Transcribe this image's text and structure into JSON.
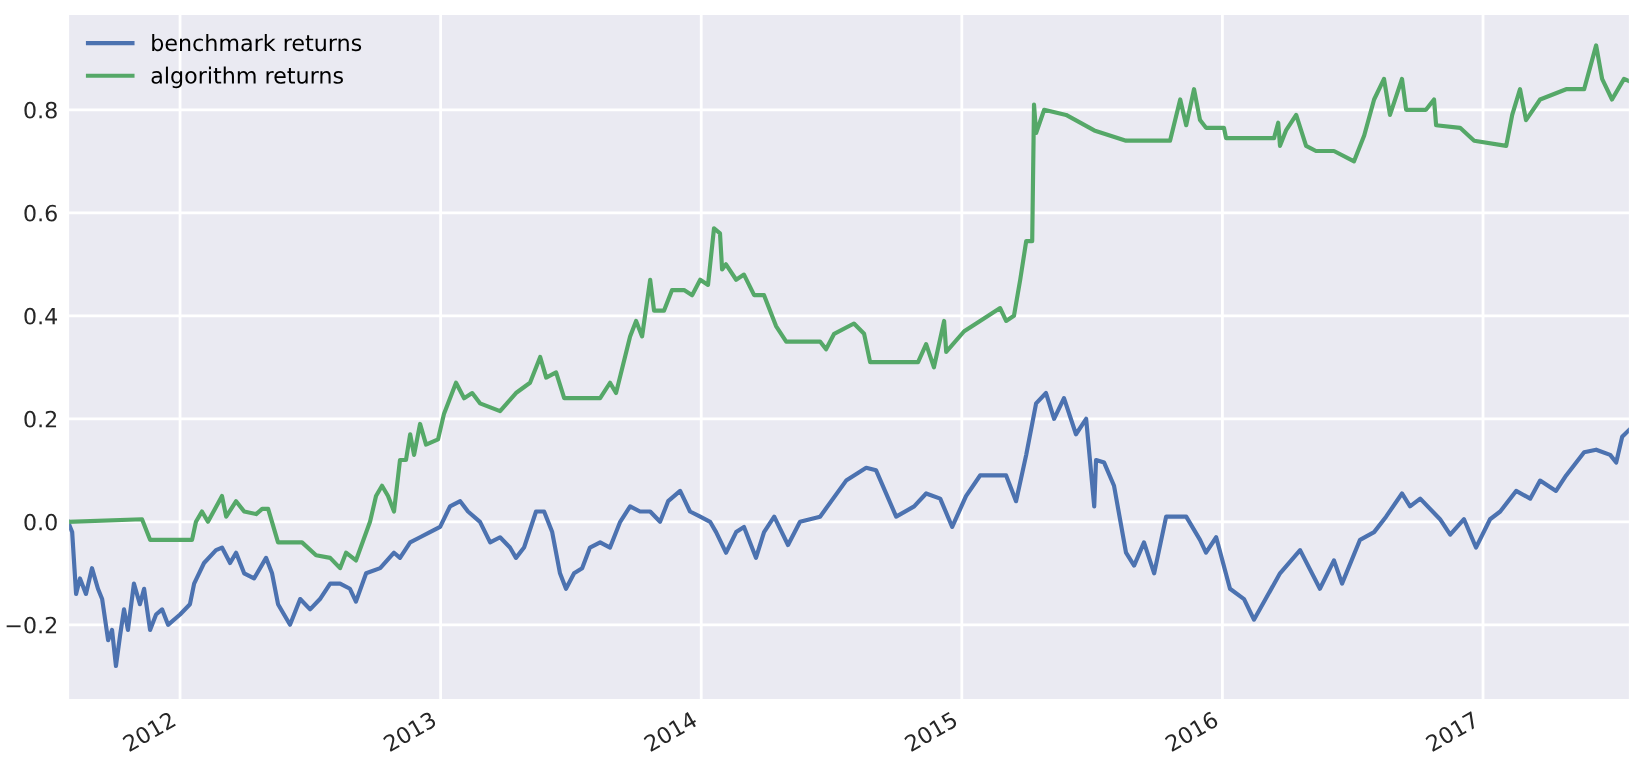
{
  "chart_data": {
    "type": "line",
    "xlim": [
      2011.57,
      2017.564
    ],
    "xticks": [
      2012,
      2013,
      2014,
      2015,
      2016,
      2017
    ],
    "ylim": [
      -0.346,
      0.986
    ],
    "yticks": [
      {
        "value": -0.2,
        "label": "−0.2"
      },
      {
        "value": 0,
        "label": "0.0"
      },
      {
        "value": 0.2,
        "label": "0.2"
      },
      {
        "value": 0.4,
        "label": "0.4"
      },
      {
        "value": 0.6,
        "label": "0.6"
      },
      {
        "value": 0.8,
        "label": "0.8"
      }
    ],
    "grid": true,
    "legend": "top left",
    "marker": "none",
    "line_style": "solid",
    "series": [
      {
        "name": "benchmark returns",
        "color": "#4c72b0",
        "x": [
          2011.57,
          2011.586,
          2011.601,
          2011.616,
          2011.639,
          2011.662,
          2011.685,
          2011.701,
          2011.724,
          2011.739,
          2011.754,
          2011.77,
          2011.785,
          2011.8,
          2011.823,
          2011.846,
          2011.862,
          2011.885,
          2011.908,
          2011.931,
          2011.954,
          2012.0,
          2012.038,
          2012.054,
          2012.092,
          2012.138,
          2012.161,
          2012.192,
          2012.215,
          2012.246,
          2012.284,
          2012.33,
          2012.353,
          2012.376,
          2012.422,
          2012.461,
          2012.499,
          2012.537,
          2012.576,
          2012.614,
          2012.652,
          2012.675,
          2012.714,
          2012.768,
          2012.821,
          2012.844,
          2012.883,
          2012.921,
          2012.959,
          2012.998,
          2013.036,
          2013.075,
          2013.105,
          2013.151,
          2013.19,
          2013.228,
          2013.266,
          2013.289,
          2013.32,
          2013.366,
          2013.397,
          2013.428,
          2013.458,
          2013.481,
          2013.512,
          2013.543,
          2013.573,
          2013.612,
          2013.65,
          2013.689,
          2013.727,
          2013.765,
          2013.804,
          2013.842,
          2013.873,
          2013.919,
          2013.957,
          2013.996,
          2014.034,
          2014.057,
          2014.095,
          2014.134,
          2014.164,
          2014.21,
          2014.241,
          2014.28,
          2014.333,
          2014.379,
          2014.456,
          2014.556,
          2014.633,
          2014.671,
          2014.748,
          2014.817,
          2014.863,
          2014.917,
          2014.963,
          2015.016,
          2015.07,
          2015.124,
          2015.17,
          2015.208,
          2015.247,
          2015.285,
          2015.323,
          2015.354,
          2015.392,
          2015.438,
          2015.477,
          2015.508,
          2015.515,
          2015.546,
          2015.584,
          2015.63,
          2015.661,
          2015.699,
          2015.738,
          2015.784,
          2015.861,
          2015.914,
          2015.937,
          2015.976,
          2016.029,
          2016.083,
          2016.121,
          2016.221,
          2016.298,
          2016.374,
          2016.428,
          2016.459,
          2016.528,
          2016.582,
          2016.628,
          2016.689,
          2016.72,
          2016.759,
          2016.835,
          2016.874,
          2016.927,
          2016.973,
          2017.027,
          2017.066,
          2017.127,
          2017.181,
          2017.219,
          2017.28,
          2017.319,
          2017.388,
          2017.434,
          2017.488,
          2017.511,
          2017.534,
          2017.564
        ],
        "values": [
          0,
          -0.02,
          -0.14,
          -0.11,
          -0.14,
          -0.09,
          -0.13,
          -0.15,
          -0.23,
          -0.21,
          -0.28,
          -0.22,
          -0.17,
          -0.21,
          -0.12,
          -0.16,
          -0.13,
          -0.21,
          -0.18,
          -0.17,
          -0.2,
          -0.18,
          -0.16,
          -0.12,
          -0.08,
          -0.055,
          -0.05,
          -0.08,
          -0.06,
          -0.1,
          -0.11,
          -0.07,
          -0.1,
          -0.16,
          -0.2,
          -0.15,
          -0.17,
          -0.15,
          -0.12,
          -0.12,
          -0.13,
          -0.155,
          -0.1,
          -0.09,
          -0.06,
          -0.07,
          -0.04,
          -0.03,
          -0.02,
          -0.01,
          0.03,
          0.04,
          0.02,
          0.0,
          -0.04,
          -0.03,
          -0.05,
          -0.07,
          -0.05,
          0.02,
          0.02,
          -0.02,
          -0.1,
          -0.13,
          -0.1,
          -0.09,
          -0.05,
          -0.04,
          -0.05,
          0.0,
          0.03,
          0.02,
          0.02,
          0.0,
          0.04,
          0.06,
          0.02,
          0.01,
          0.0,
          -0.02,
          -0.06,
          -0.02,
          -0.01,
          -0.07,
          -0.02,
          0.01,
          -0.045,
          0.0,
          0.01,
          0.08,
          0.105,
          0.1,
          0.01,
          0.03,
          0.055,
          0.045,
          -0.01,
          0.05,
          0.09,
          0.09,
          0.09,
          0.04,
          0.13,
          0.23,
          0.25,
          0.2,
          0.24,
          0.17,
          0.2,
          0.03,
          0.12,
          0.115,
          0.07,
          -0.06,
          -0.085,
          -0.04,
          -0.1,
          0.01,
          0.01,
          -0.035,
          -0.06,
          -0.03,
          -0.13,
          -0.15,
          -0.19,
          -0.1,
          -0.055,
          -0.13,
          -0.075,
          -0.12,
          -0.035,
          -0.02,
          0.01,
          0.055,
          0.03,
          0.045,
          0.005,
          -0.025,
          0.005,
          -0.05,
          0.005,
          0.02,
          0.06,
          0.045,
          0.08,
          0.06,
          0.09,
          0.135,
          0.14,
          0.13,
          0.115,
          0.165,
          0.18
        ]
      },
      {
        "name": "algorithm returns",
        "color": "#55a868",
        "x": [
          2011.57,
          2011.854,
          2011.885,
          2012.046,
          2012.061,
          2012.084,
          2012.107,
          2012.161,
          2012.177,
          2012.215,
          2012.246,
          2012.292,
          2012.315,
          2012.338,
          2012.376,
          2012.468,
          2012.522,
          2012.576,
          2012.614,
          2012.637,
          2012.675,
          2012.729,
          2012.752,
          2012.775,
          2012.798,
          2012.821,
          2012.844,
          2012.867,
          2012.883,
          2012.898,
          2012.921,
          2012.944,
          2012.99,
          2013.013,
          2013.059,
          2013.09,
          2013.121,
          2013.151,
          2013.228,
          2013.289,
          2013.343,
          2013.382,
          2013.405,
          2013.443,
          2013.474,
          2013.612,
          2013.65,
          2013.673,
          2013.727,
          2013.75,
          2013.773,
          2013.804,
          2013.819,
          2013.857,
          2013.888,
          2013.934,
          2013.965,
          2013.996,
          2014.026,
          2014.049,
          2014.072,
          2014.08,
          2014.095,
          2014.134,
          2014.164,
          2014.203,
          2014.241,
          2014.287,
          2014.326,
          2014.456,
          2014.479,
          2014.51,
          2014.586,
          2014.625,
          2014.648,
          2014.832,
          2014.863,
          2014.893,
          2014.932,
          2014.94,
          2015.009,
          2015.07,
          2015.147,
          2015.17,
          2015.2,
          2015.224,
          2015.247,
          2015.27,
          2015.277,
          2015.285,
          2015.316,
          2015.4,
          2015.508,
          2015.63,
          2015.799,
          2015.838,
          2015.861,
          2015.891,
          2015.914,
          2015.937,
          2016.006,
          2016.014,
          2016.198,
          2016.214,
          2016.221,
          2016.244,
          2016.283,
          2016.321,
          2016.359,
          2016.428,
          2016.505,
          2016.544,
          2016.582,
          2016.62,
          2016.643,
          2016.689,
          2016.705,
          2016.781,
          2016.812,
          2016.82,
          2016.912,
          2016.966,
          2017.089,
          2017.112,
          2017.142,
          2017.165,
          2017.219,
          2017.319,
          2017.388,
          2017.434,
          2017.457,
          2017.495,
          2017.541,
          2017.564
        ],
        "values": [
          0,
          0.005,
          -0.035,
          -0.035,
          0.0,
          0.02,
          0.0,
          0.05,
          0.01,
          0.04,
          0.02,
          0.015,
          0.025,
          0.025,
          -0.04,
          -0.04,
          -0.065,
          -0.07,
          -0.09,
          -0.06,
          -0.075,
          0.0,
          0.05,
          0.07,
          0.05,
          0.02,
          0.12,
          0.12,
          0.17,
          0.13,
          0.19,
          0.15,
          0.16,
          0.21,
          0.27,
          0.24,
          0.25,
          0.23,
          0.215,
          0.25,
          0.27,
          0.32,
          0.28,
          0.29,
          0.24,
          0.24,
          0.27,
          0.25,
          0.36,
          0.39,
          0.36,
          0.47,
          0.41,
          0.41,
          0.45,
          0.45,
          0.44,
          0.47,
          0.46,
          0.57,
          0.56,
          0.49,
          0.5,
          0.47,
          0.48,
          0.44,
          0.44,
          0.38,
          0.35,
          0.35,
          0.335,
          0.365,
          0.385,
          0.365,
          0.31,
          0.31,
          0.345,
          0.3,
          0.39,
          0.33,
          0.37,
          0.39,
          0.415,
          0.39,
          0.4,
          0.47,
          0.545,
          0.545,
          0.81,
          0.755,
          0.8,
          0.79,
          0.76,
          0.74,
          0.74,
          0.82,
          0.77,
          0.84,
          0.78,
          0.765,
          0.765,
          0.745,
          0.745,
          0.775,
          0.73,
          0.76,
          0.79,
          0.73,
          0.72,
          0.72,
          0.7,
          0.75,
          0.82,
          0.86,
          0.79,
          0.86,
          0.8,
          0.8,
          0.82,
          0.77,
          0.765,
          0.74,
          0.73,
          0.79,
          0.84,
          0.78,
          0.82,
          0.84,
          0.84,
          0.925,
          0.86,
          0.82,
          0.86,
          0.855
        ]
      }
    ]
  }
}
